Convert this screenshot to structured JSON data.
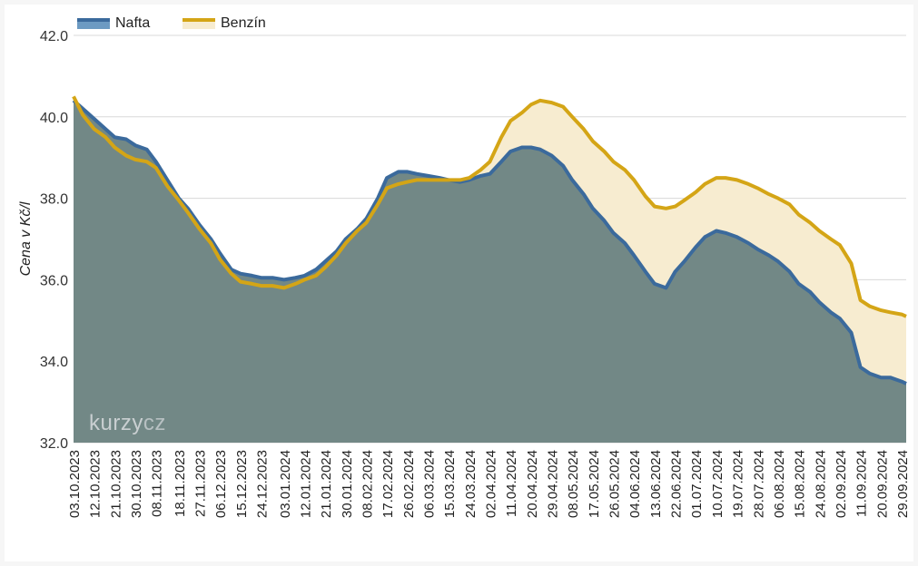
{
  "chart_data": {
    "type": "area",
    "ylabel": "Cena v Kč/l",
    "ylim": [
      32,
      42
    ],
    "yticks": [
      "32.0",
      "34.0",
      "36.0",
      "38.0",
      "40.0",
      "42.0"
    ],
    "grid": true,
    "legend_placement": "top-left",
    "x_tick_labels": [
      "03.10.2023",
      "12.10.2023",
      "21.10.2023",
      "30.10.2023",
      "08.11.2023",
      "18.11.2023",
      "27.11.2023",
      "06.12.2023",
      "15.12.2023",
      "24.12.2023",
      "03.01.2024",
      "12.01.2024",
      "21.01.2024",
      "30.01.2024",
      "08.02.2024",
      "17.02.2024",
      "26.02.2024",
      "06.03.2024",
      "15.03.2024",
      "24.03.2024",
      "02.04.2024",
      "11.04.2024",
      "20.04.2024",
      "29.04.2024",
      "08.05.2024",
      "17.05.2024",
      "26.05.2024",
      "04.06.2024",
      "13.06.2024",
      "22.06.2024",
      "01.07.2024",
      "10.07.2024",
      "19.07.2024",
      "28.07.2024",
      "06.08.2024",
      "15.08.2024",
      "24.08.2024",
      "02.09.2024",
      "11.09.2024",
      "20.09.2024",
      "29.09.2024"
    ],
    "series": [
      {
        "name": "Nafta",
        "color": "#3b6a9c",
        "fill": "#728886",
        "points": [
          [
            "03.10.2023",
            40.4
          ],
          [
            "07.10.2023",
            40.2
          ],
          [
            "12.10.2023",
            39.95
          ],
          [
            "21.10.2023",
            39.5
          ],
          [
            "26.10.2023",
            39.45
          ],
          [
            "30.10.2023",
            39.3
          ],
          [
            "04.11.2023",
            39.2
          ],
          [
            "08.11.2023",
            38.9
          ],
          [
            "13.11.2023",
            38.45
          ],
          [
            "18.11.2023",
            38.0
          ],
          [
            "22.11.2023",
            37.75
          ],
          [
            "27.11.2023",
            37.35
          ],
          [
            "02.12.2023",
            37.0
          ],
          [
            "06.12.2023",
            36.65
          ],
          [
            "11.12.2023",
            36.25
          ],
          [
            "15.12.2023",
            36.15
          ],
          [
            "20.12.2023",
            36.1
          ],
          [
            "24.12.2023",
            36.05
          ],
          [
            "29.12.2023",
            36.05
          ],
          [
            "03.01.2024",
            36.0
          ],
          [
            "08.01.2024",
            36.05
          ],
          [
            "12.01.2024",
            36.1
          ],
          [
            "17.01.2024",
            36.25
          ],
          [
            "21.01.2024",
            36.45
          ],
          [
            "26.01.2024",
            36.7
          ],
          [
            "30.01.2024",
            37.0
          ],
          [
            "04.02.2024",
            37.25
          ],
          [
            "08.02.2024",
            37.5
          ],
          [
            "13.02.2024",
            38.0
          ],
          [
            "17.02.2024",
            38.5
          ],
          [
            "22.02.2024",
            38.65
          ],
          [
            "26.02.2024",
            38.65
          ],
          [
            "01.03.2024",
            38.6
          ],
          [
            "06.03.2024",
            38.55
          ],
          [
            "11.03.2024",
            38.5
          ],
          [
            "15.03.2024",
            38.45
          ],
          [
            "20.03.2024",
            38.4
          ],
          [
            "24.03.2024",
            38.45
          ],
          [
            "29.03.2024",
            38.55
          ],
          [
            "02.04.2024",
            38.6
          ],
          [
            "07.04.2024",
            38.9
          ],
          [
            "11.04.2024",
            39.15
          ],
          [
            "16.04.2024",
            39.25
          ],
          [
            "20.04.2024",
            39.25
          ],
          [
            "24.04.2024",
            39.2
          ],
          [
            "29.04.2024",
            39.05
          ],
          [
            "04.05.2024",
            38.8
          ],
          [
            "08.05.2024",
            38.45
          ],
          [
            "13.05.2024",
            38.1
          ],
          [
            "17.05.2024",
            37.75
          ],
          [
            "22.05.2024",
            37.45
          ],
          [
            "26.05.2024",
            37.15
          ],
          [
            "31.05.2024",
            36.9
          ],
          [
            "04.06.2024",
            36.6
          ],
          [
            "09.06.2024",
            36.2
          ],
          [
            "13.06.2024",
            35.9
          ],
          [
            "18.06.2024",
            35.8
          ],
          [
            "22.06.2024",
            36.2
          ],
          [
            "26.06.2024",
            36.45
          ],
          [
            "01.07.2024",
            36.8
          ],
          [
            "05.07.2024",
            37.05
          ],
          [
            "10.07.2024",
            37.2
          ],
          [
            "14.07.2024",
            37.15
          ],
          [
            "19.07.2024",
            37.05
          ],
          [
            "24.07.2024",
            36.9
          ],
          [
            "28.07.2024",
            36.75
          ],
          [
            "02.08.2024",
            36.6
          ],
          [
            "06.08.2024",
            36.45
          ],
          [
            "11.08.2024",
            36.2
          ],
          [
            "15.08.2024",
            35.9
          ],
          [
            "20.08.2024",
            35.7
          ],
          [
            "24.08.2024",
            35.45
          ],
          [
            "29.08.2024",
            35.2
          ],
          [
            "02.09.2024",
            35.05
          ],
          [
            "07.09.2024",
            34.7
          ],
          [
            "11.09.2024",
            33.85
          ],
          [
            "15.09.2024",
            33.7
          ],
          [
            "20.09.2024",
            33.6
          ],
          [
            "24.09.2024",
            33.6
          ],
          [
            "29.09.2024",
            33.5
          ],
          [
            "01.10.2024",
            33.45
          ]
        ]
      },
      {
        "name": "Benzín",
        "color": "#d4a516",
        "fill": "#f7ecd0",
        "points": [
          [
            "03.10.2023",
            40.5
          ],
          [
            "07.10.2023",
            40.05
          ],
          [
            "12.10.2023",
            39.7
          ],
          [
            "17.10.2023",
            39.5
          ],
          [
            "21.10.2023",
            39.25
          ],
          [
            "26.10.2023",
            39.05
          ],
          [
            "30.10.2023",
            38.95
          ],
          [
            "04.11.2023",
            38.9
          ],
          [
            "08.11.2023",
            38.75
          ],
          [
            "13.11.2023",
            38.3
          ],
          [
            "18.11.2023",
            37.95
          ],
          [
            "22.11.2023",
            37.65
          ],
          [
            "27.11.2023",
            37.25
          ],
          [
            "02.12.2023",
            36.9
          ],
          [
            "06.12.2023",
            36.5
          ],
          [
            "11.12.2023",
            36.15
          ],
          [
            "15.12.2023",
            35.95
          ],
          [
            "20.12.2023",
            35.9
          ],
          [
            "24.12.2023",
            35.85
          ],
          [
            "29.12.2023",
            35.85
          ],
          [
            "03.01.2024",
            35.8
          ],
          [
            "08.01.2024",
            35.9
          ],
          [
            "12.01.2024",
            36.0
          ],
          [
            "17.01.2024",
            36.1
          ],
          [
            "21.01.2024",
            36.3
          ],
          [
            "26.01.2024",
            36.6
          ],
          [
            "30.01.2024",
            36.9
          ],
          [
            "04.02.2024",
            37.2
          ],
          [
            "08.02.2024",
            37.4
          ],
          [
            "13.02.2024",
            37.85
          ],
          [
            "17.02.2024",
            38.25
          ],
          [
            "22.02.2024",
            38.35
          ],
          [
            "26.02.2024",
            38.4
          ],
          [
            "01.03.2024",
            38.45
          ],
          [
            "06.03.2024",
            38.45
          ],
          [
            "11.03.2024",
            38.45
          ],
          [
            "15.03.2024",
            38.45
          ],
          [
            "20.03.2024",
            38.45
          ],
          [
            "24.03.2024",
            38.5
          ],
          [
            "29.03.2024",
            38.7
          ],
          [
            "02.04.2024",
            38.9
          ],
          [
            "07.04.2024",
            39.5
          ],
          [
            "11.04.2024",
            39.9
          ],
          [
            "16.04.2024",
            40.1
          ],
          [
            "20.04.2024",
            40.3
          ],
          [
            "24.04.2024",
            40.4
          ],
          [
            "29.04.2024",
            40.35
          ],
          [
            "04.05.2024",
            40.25
          ],
          [
            "08.05.2024",
            40.0
          ],
          [
            "13.05.2024",
            39.7
          ],
          [
            "17.05.2024",
            39.4
          ],
          [
            "22.05.2024",
            39.15
          ],
          [
            "26.05.2024",
            38.9
          ],
          [
            "31.05.2024",
            38.7
          ],
          [
            "04.06.2024",
            38.45
          ],
          [
            "09.06.2024",
            38.05
          ],
          [
            "13.06.2024",
            37.8
          ],
          [
            "18.06.2024",
            37.75
          ],
          [
            "22.06.2024",
            37.8
          ],
          [
            "26.06.2024",
            37.95
          ],
          [
            "01.07.2024",
            38.15
          ],
          [
            "05.07.2024",
            38.35
          ],
          [
            "10.07.2024",
            38.5
          ],
          [
            "14.07.2024",
            38.5
          ],
          [
            "19.07.2024",
            38.45
          ],
          [
            "24.07.2024",
            38.35
          ],
          [
            "28.07.2024",
            38.25
          ],
          [
            "02.08.2024",
            38.1
          ],
          [
            "06.08.2024",
            38.0
          ],
          [
            "11.08.2024",
            37.85
          ],
          [
            "15.08.2024",
            37.6
          ],
          [
            "20.08.2024",
            37.4
          ],
          [
            "24.08.2024",
            37.2
          ],
          [
            "29.08.2024",
            37.0
          ],
          [
            "02.09.2024",
            36.85
          ],
          [
            "07.09.2024",
            36.4
          ],
          [
            "11.09.2024",
            35.5
          ],
          [
            "15.09.2024",
            35.35
          ],
          [
            "20.09.2024",
            35.25
          ],
          [
            "24.09.2024",
            35.2
          ],
          [
            "29.09.2024",
            35.15
          ],
          [
            "01.10.2024",
            35.1
          ]
        ]
      }
    ]
  },
  "watermark": {
    "part1": "kurzy",
    "part2": "cz"
  }
}
